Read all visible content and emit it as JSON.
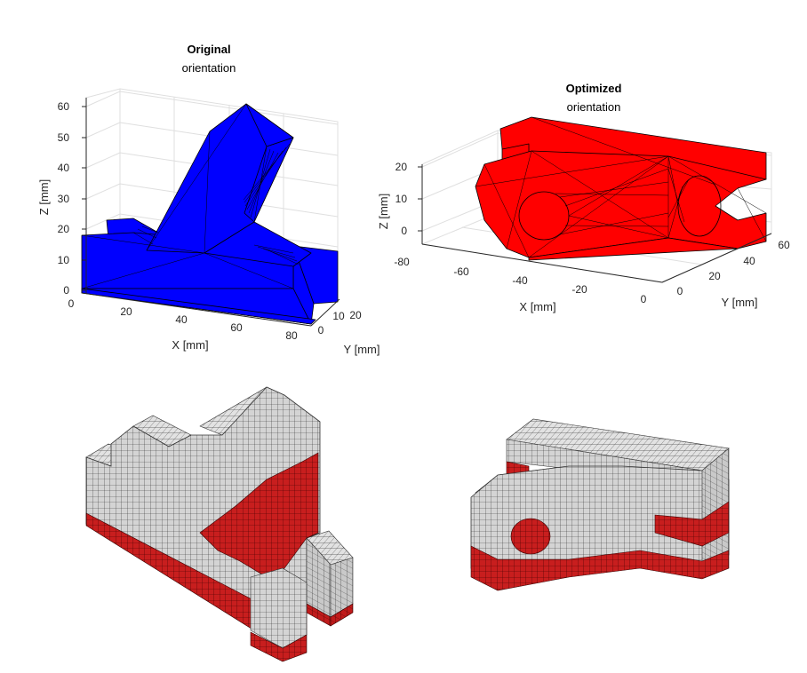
{
  "figure": {
    "panel_original": {
      "title_bold": "Original",
      "title_sub": "orientation",
      "mesh_color": "#0000ff",
      "x_label": "X [mm]",
      "y_label": "Y [mm]",
      "z_label": "Z [mm]",
      "z_ticks": [
        "0",
        "10",
        "20",
        "30",
        "40",
        "50",
        "60"
      ],
      "x_ticks": [
        "0",
        "20",
        "40",
        "60",
        "80"
      ],
      "y_ticks": [
        "0",
        "10",
        "20"
      ]
    },
    "panel_optimized": {
      "title_bold": "Optimized",
      "title_sub": "orientation",
      "mesh_color": "#ff0000",
      "x_label": "X [mm]",
      "y_label": "Y [mm]",
      "z_label": "Z [mm]",
      "z_ticks": [
        "0",
        "10",
        "20"
      ],
      "x_ticks": [
        "-80",
        "-60",
        "-40",
        "-20",
        "0"
      ],
      "y_ticks": [
        "0",
        "20",
        "40",
        "60"
      ]
    },
    "voxel_colors": {
      "surface": "#d4d4d4",
      "marked": "#c81e1e",
      "grid_line": "#333333"
    }
  }
}
